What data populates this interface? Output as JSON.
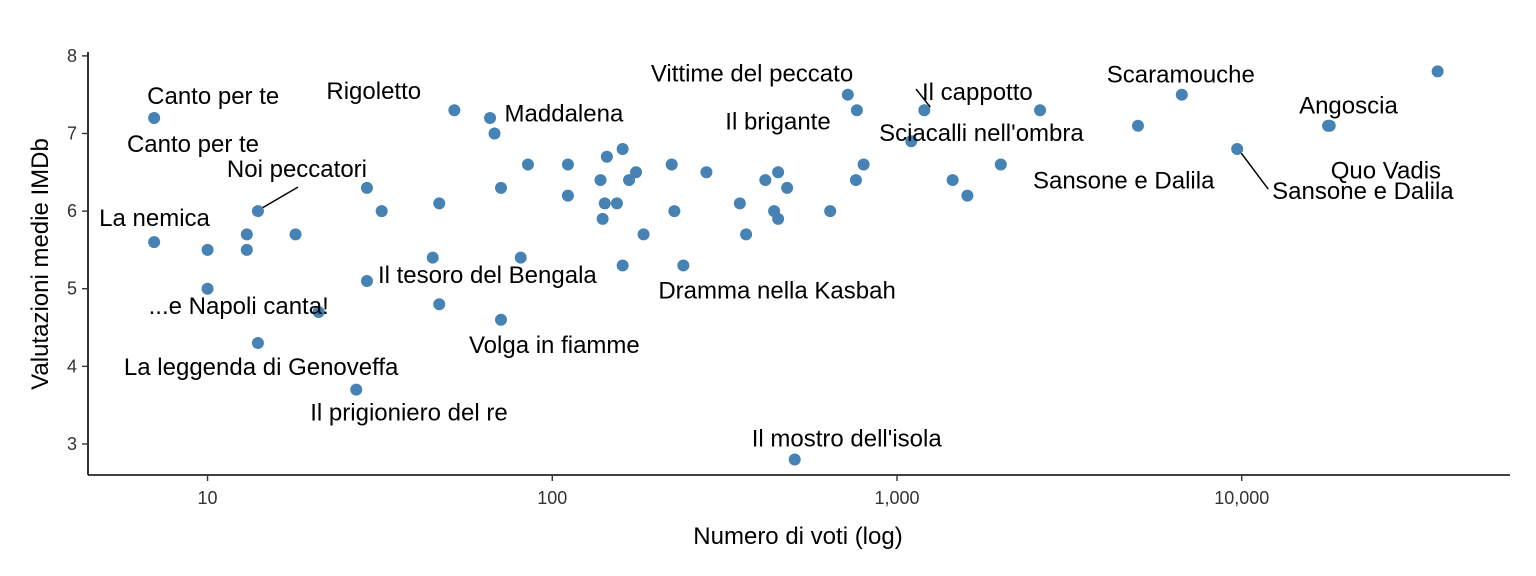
{
  "chart_data": {
    "type": "scatter",
    "title": "",
    "xlabel": "Numero di voti (log)",
    "ylabel": "Valutazioni medie IMDb",
    "x_scale": "log10",
    "xlim": [
      4.5,
      60000
    ],
    "ylim": [
      2.6,
      8.05
    ],
    "x_ticks": [
      10,
      100,
      1000,
      10000
    ],
    "x_tick_labels": [
      "10",
      "100",
      "1,000",
      "10,000"
    ],
    "y_ticks": [
      3,
      4,
      5,
      6,
      7,
      8
    ],
    "y_tick_labels": [
      "3",
      "4",
      "5",
      "6",
      "7",
      "8"
    ],
    "grid": false,
    "legend": "none",
    "point_color": "#4682B4",
    "leader_color": "#000000",
    "points": [
      {
        "x": 7,
        "y": 7.2,
        "label": "Canto per te"
      },
      {
        "x": 14,
        "y": 6.0,
        "label": "Noi peccatori"
      },
      {
        "x": 7,
        "y": 5.6,
        "label": "La nemica"
      },
      {
        "x": 10,
        "y": 5.5
      },
      {
        "x": 10,
        "y": 5.0
      },
      {
        "x": 13,
        "y": 5.7
      },
      {
        "x": 13,
        "y": 5.5
      },
      {
        "x": 14,
        "y": 4.3,
        "label": "La leggenda di Genoveffa"
      },
      {
        "x": 18,
        "y": 5.7
      },
      {
        "x": 21,
        "y": 4.7,
        "label": "...e Napoli canta!"
      },
      {
        "x": 27,
        "y": 3.7,
        "label": "Il prigioniero del re"
      },
      {
        "x": 29,
        "y": 6.3,
        "label": "Canto per te"
      },
      {
        "x": 29,
        "y": 5.1,
        "label": "Il tesoro del Bengala"
      },
      {
        "x": 32,
        "y": 6.0
      },
      {
        "x": 45,
        "y": 5.4
      },
      {
        "x": 47,
        "y": 6.1
      },
      {
        "x": 47,
        "y": 4.8
      },
      {
        "x": 52,
        "y": 7.3,
        "label": "Rigoletto"
      },
      {
        "x": 66,
        "y": 7.2
      },
      {
        "x": 68,
        "y": 7.0,
        "label": "Maddalena"
      },
      {
        "x": 71,
        "y": 6.3
      },
      {
        "x": 71,
        "y": 4.6,
        "label": "Volga in fiamme"
      },
      {
        "x": 81,
        "y": 5.4
      },
      {
        "x": 85,
        "y": 6.6
      },
      {
        "x": 111,
        "y": 6.6
      },
      {
        "x": 111,
        "y": 6.2
      },
      {
        "x": 138,
        "y": 6.4
      },
      {
        "x": 140,
        "y": 5.9
      },
      {
        "x": 142,
        "y": 6.1
      },
      {
        "x": 144,
        "y": 6.7
      },
      {
        "x": 154,
        "y": 6.1
      },
      {
        "x": 160,
        "y": 6.8
      },
      {
        "x": 160,
        "y": 5.3
      },
      {
        "x": 167,
        "y": 6.4
      },
      {
        "x": 175,
        "y": 6.5
      },
      {
        "x": 184,
        "y": 5.7
      },
      {
        "x": 222,
        "y": 6.6
      },
      {
        "x": 226,
        "y": 6.0
      },
      {
        "x": 240,
        "y": 5.3,
        "label": "Dramma nella Kasbah"
      },
      {
        "x": 280,
        "y": 6.5
      },
      {
        "x": 350,
        "y": 6.1
      },
      {
        "x": 365,
        "y": 5.7
      },
      {
        "x": 415,
        "y": 6.4
      },
      {
        "x": 440,
        "y": 6.0
      },
      {
        "x": 452,
        "y": 6.5
      },
      {
        "x": 452,
        "y": 5.9
      },
      {
        "x": 480,
        "y": 6.3
      },
      {
        "x": 505,
        "y": 2.8,
        "label": "Il mostro dell'isola"
      },
      {
        "x": 640,
        "y": 6.0
      },
      {
        "x": 720,
        "y": 7.5,
        "label": "Vittime del peccato"
      },
      {
        "x": 760,
        "y": 6.4
      },
      {
        "x": 765,
        "y": 7.3
      },
      {
        "x": 800,
        "y": 6.6
      },
      {
        "x": 1100,
        "y": 6.9,
        "label": "Il brigante"
      },
      {
        "x": 1200,
        "y": 7.3,
        "label": "Il cappotto"
      },
      {
        "x": 1450,
        "y": 6.4
      },
      {
        "x": 1600,
        "y": 6.2
      },
      {
        "x": 2000,
        "y": 6.6
      },
      {
        "x": 2600,
        "y": 7.3,
        "label": "Sciacalli nell'ombra"
      },
      {
        "x": 5000,
        "y": 7.1,
        "label": "Sansone e Dalila"
      },
      {
        "x": 6700,
        "y": 7.5,
        "label": "Scaramouche"
      },
      {
        "x": 9700,
        "y": 6.8,
        "label": "Sansone e Dalila"
      },
      {
        "x": 17800,
        "y": 7.1,
        "label": "Angoscia"
      },
      {
        "x": 18000,
        "y": 7.1,
        "label": "Quo Vadis"
      },
      {
        "x": 37000,
        "y": 7.8
      }
    ]
  }
}
